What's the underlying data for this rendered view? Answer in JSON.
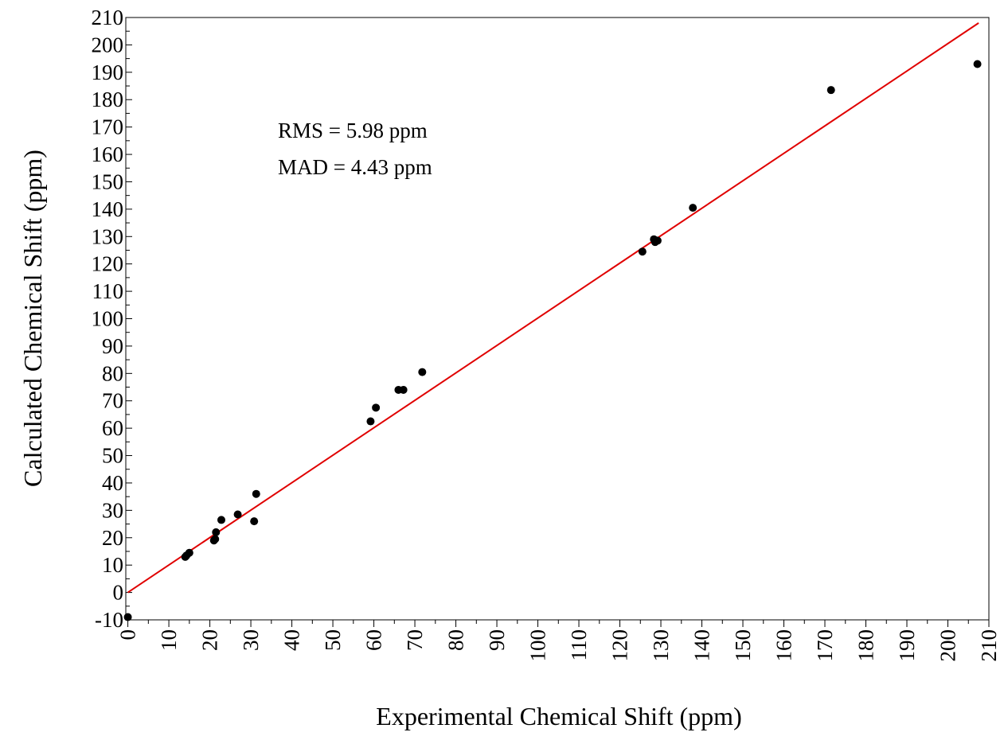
{
  "chart_data": {
    "type": "scatter",
    "xlabel": "Experimental Chemical Shift (ppm)",
    "ylabel": "Calculated Chemical Shift (ppm)",
    "xlim": [
      -0.5,
      210
    ],
    "ylim": [
      -10,
      210
    ],
    "xticks": [
      0,
      10,
      20,
      30,
      40,
      50,
      60,
      70,
      80,
      90,
      100,
      110,
      120,
      130,
      140,
      150,
      160,
      170,
      180,
      190,
      200,
      210
    ],
    "yticks": [
      -10,
      0,
      10,
      20,
      30,
      40,
      50,
      60,
      70,
      80,
      90,
      100,
      110,
      120,
      130,
      140,
      150,
      160,
      170,
      180,
      190,
      200,
      210
    ],
    "annotations": [
      "RMS = 5.98 ppm",
      "MAD = 4.43 ppm"
    ],
    "grid": false,
    "legend": "none",
    "point_color": "#000000",
    "fit_line_color": "#e00000",
    "fit_line": {
      "x": [
        0,
        207.5
      ],
      "y": [
        0,
        208
      ]
    },
    "points": [
      {
        "x": 0.0,
        "y": -9.0
      },
      {
        "x": 14.0,
        "y": 13.0
      },
      {
        "x": 14.3,
        "y": 13.5
      },
      {
        "x": 15.0,
        "y": 14.5
      },
      {
        "x": 21.0,
        "y": 19.0
      },
      {
        "x": 21.3,
        "y": 19.5
      },
      {
        "x": 21.5,
        "y": 22.0
      },
      {
        "x": 22.8,
        "y": 26.5
      },
      {
        "x": 26.8,
        "y": 28.5
      },
      {
        "x": 30.8,
        "y": 26.0
      },
      {
        "x": 31.3,
        "y": 36.0
      },
      {
        "x": 59.2,
        "y": 62.5
      },
      {
        "x": 60.5,
        "y": 67.5
      },
      {
        "x": 66.0,
        "y": 74.0
      },
      {
        "x": 67.2,
        "y": 74.0
      },
      {
        "x": 71.8,
        "y": 80.5
      },
      {
        "x": 125.5,
        "y": 124.5
      },
      {
        "x": 128.3,
        "y": 129.0
      },
      {
        "x": 128.6,
        "y": 128.0
      },
      {
        "x": 129.2,
        "y": 128.5
      },
      {
        "x": 137.8,
        "y": 140.5
      },
      {
        "x": 171.5,
        "y": 183.5
      },
      {
        "x": 207.2,
        "y": 193.0
      }
    ]
  }
}
